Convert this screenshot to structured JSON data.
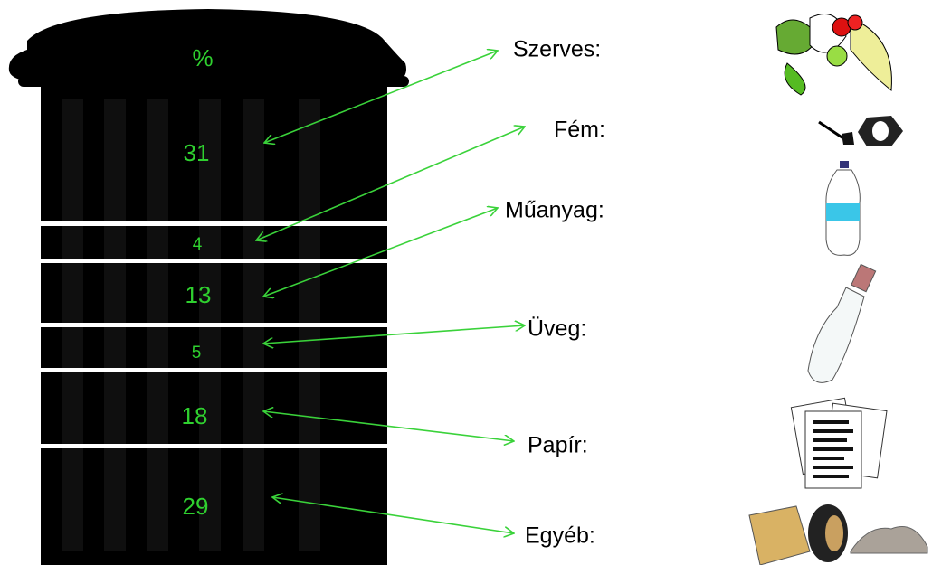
{
  "unit": "%",
  "segments": [
    {
      "value": 31,
      "label": "Szerves:"
    },
    {
      "value": 4,
      "label": "Fém:"
    },
    {
      "value": 13,
      "label": "Műanyag:"
    },
    {
      "value": 5,
      "label": "Üveg:"
    },
    {
      "value": 18,
      "label": "Papír:"
    },
    {
      "value": 29,
      "label": "Egyéb:"
    }
  ]
}
